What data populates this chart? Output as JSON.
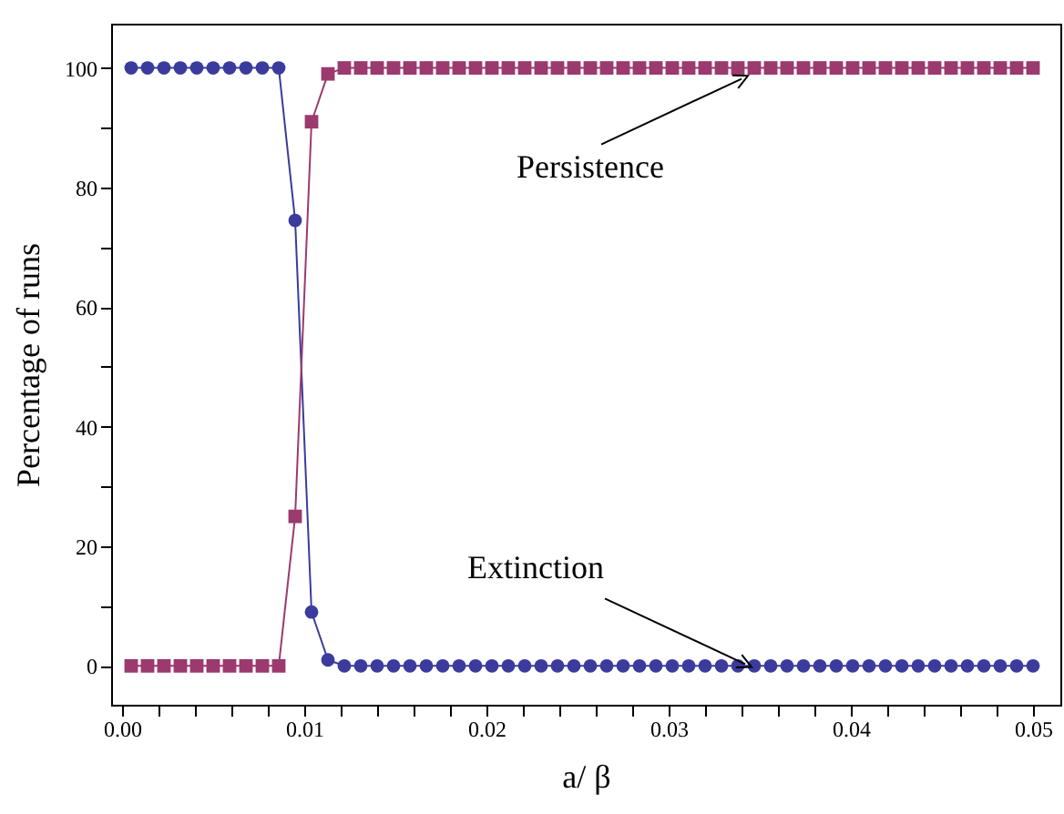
{
  "chart_data": {
    "type": "line",
    "xlabel": "a/ β",
    "ylabel": "Percentage of runs",
    "x": [
      0.0005,
      0.0014,
      0.0023,
      0.0032,
      0.0041,
      0.005,
      0.0059,
      0.0068,
      0.0077,
      0.0086,
      0.0095,
      0.0104,
      0.0113,
      0.0122,
      0.0131,
      0.014,
      0.0149,
      0.0158,
      0.0167,
      0.0176,
      0.0185,
      0.0194,
      0.0203,
      0.0212,
      0.0221,
      0.023,
      0.0239,
      0.0248,
      0.0257,
      0.0266,
      0.0275,
      0.0284,
      0.0293,
      0.0302,
      0.0311,
      0.032,
      0.0329,
      0.0338,
      0.0347,
      0.0356,
      0.0365,
      0.0374,
      0.0383,
      0.0392,
      0.0401,
      0.041,
      0.0419,
      0.0428,
      0.0437,
      0.0446,
      0.0455,
      0.0464,
      0.0473,
      0.0482,
      0.0491,
      0.05
    ],
    "series": [
      {
        "color": "#3b3b9e",
        "marker": "circle",
        "values": [
          100,
          100,
          100,
          100,
          100,
          100,
          100,
          100,
          100,
          100,
          74.5,
          9,
          1,
          0,
          0,
          0,
          0,
          0,
          0,
          0,
          0,
          0,
          0,
          0,
          0,
          0,
          0,
          0,
          0,
          0,
          0,
          0,
          0,
          0,
          0,
          0,
          0,
          0,
          0,
          0,
          0,
          0,
          0,
          0,
          0,
          0,
          0,
          0,
          0,
          0,
          0,
          0,
          0,
          0,
          0,
          0
        ]
      },
      {
        "color": "#9b3a6e",
        "marker": "square",
        "values": [
          0,
          0,
          0,
          0,
          0,
          0,
          0,
          0,
          0,
          0,
          25,
          91,
          99,
          100,
          100,
          100,
          100,
          100,
          100,
          100,
          100,
          100,
          100,
          100,
          100,
          100,
          100,
          100,
          100,
          100,
          100,
          100,
          100,
          100,
          100,
          100,
          100,
          100,
          100,
          100,
          100,
          100,
          100,
          100,
          100,
          100,
          100,
          100,
          100,
          100,
          100,
          100,
          100,
          100,
          100,
          100
        ]
      }
    ],
    "xlim": [
      -0.0006,
      0.0515
    ],
    "ylim": [
      -6.5,
      107.4
    ],
    "xticks": [
      {
        "value": 0,
        "label": "0.00"
      },
      {
        "value": 0.002,
        "label": null
      },
      {
        "value": 0.004,
        "label": null
      },
      {
        "value": 0.006,
        "label": null
      },
      {
        "value": 0.008,
        "label": null
      },
      {
        "value": 0.01,
        "label": "0.01"
      },
      {
        "value": 0.012,
        "label": null
      },
      {
        "value": 0.014,
        "label": null
      },
      {
        "value": 0.016,
        "label": null
      },
      {
        "value": 0.018,
        "label": null
      },
      {
        "value": 0.02,
        "label": "0.02"
      },
      {
        "value": 0.022,
        "label": null
      },
      {
        "value": 0.024,
        "label": null
      },
      {
        "value": 0.026,
        "label": null
      },
      {
        "value": 0.028,
        "label": null
      },
      {
        "value": 0.03,
        "label": "0.03"
      },
      {
        "value": 0.032,
        "label": null
      },
      {
        "value": 0.034,
        "label": null
      },
      {
        "value": 0.036,
        "label": null
      },
      {
        "value": 0.038,
        "label": null
      },
      {
        "value": 0.04,
        "label": "0.04"
      },
      {
        "value": 0.042,
        "label": null
      },
      {
        "value": 0.044,
        "label": null
      },
      {
        "value": 0.046,
        "label": null
      },
      {
        "value": 0.048,
        "label": null
      },
      {
        "value": 0.05,
        "label": "0.05"
      }
    ],
    "yticks": [
      0,
      {
        "value": 10,
        "label": null
      },
      20,
      {
        "value": 30,
        "label": null
      },
      40,
      {
        "value": 50,
        "label": null
      },
      60,
      {
        "value": 70,
        "label": null
      },
      80,
      {
        "value": 90,
        "label": null
      },
      100
    ],
    "annotations": [
      {
        "text": "Persistence",
        "x": 0.034,
        "y": 100
      },
      {
        "text": "Extinction",
        "x": 0.0342,
        "y": 0
      }
    ],
    "grid": false,
    "line_style": "solid"
  }
}
